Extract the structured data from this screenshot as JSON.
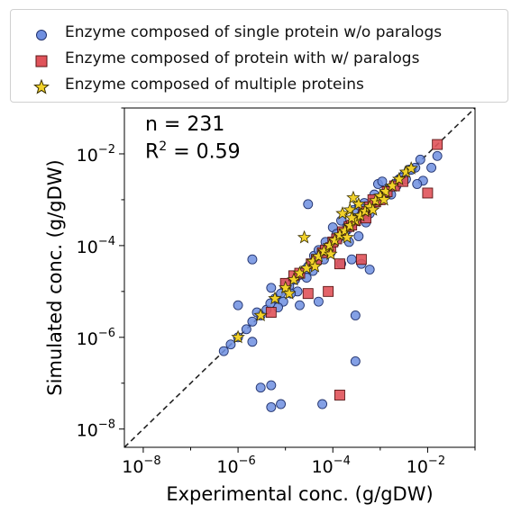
{
  "chart_data": {
    "type": "scatter",
    "xlabel": "Experimental conc. (g/gDW)",
    "ylabel": "Simulated conc. (g/gDW)",
    "xscale": "log",
    "yscale": "log",
    "xlim": [
      4e-09,
      0.1
    ],
    "ylim": [
      4e-09,
      0.1
    ],
    "xticks": [
      {
        "value": 1e-08,
        "base": "10",
        "exp": "−8"
      },
      {
        "value": 1e-06,
        "base": "10",
        "exp": "−6"
      },
      {
        "value": 0.0001,
        "base": "10",
        "exp": "−4"
      },
      {
        "value": 0.01,
        "base": "10",
        "exp": "−2"
      }
    ],
    "yticks": [
      {
        "value": 1e-08,
        "base": "10",
        "exp": "−8"
      },
      {
        "value": 1e-06,
        "base": "10",
        "exp": "−6"
      },
      {
        "value": 0.0001,
        "base": "10",
        "exp": "−4"
      },
      {
        "value": 0.01,
        "base": "10",
        "exp": "−2"
      }
    ],
    "grid": false,
    "legend_position": "top-outside",
    "reference_line": "y = x (dashed)",
    "annotations": {
      "n": "n = 231",
      "r2_prefix": "R",
      "r2_sup": "2",
      "r2_value": " = 0.59"
    },
    "series": [
      {
        "name": "Enzyme composed of single protein w/o paralogs",
        "marker": "circle",
        "color": "#6f8fe0",
        "points": [
          [
            5e-07,
            5e-07
          ],
          [
            7e-07,
            7e-07
          ],
          [
            1e-06,
            1e-06
          ],
          [
            1.5e-06,
            1.5e-06
          ],
          [
            2e-06,
            2.2e-06
          ],
          [
            3e-06,
            3e-06
          ],
          [
            4e-06,
            4e-06
          ],
          [
            6e-06,
            7e-06
          ],
          [
            8e-06,
            9e-06
          ],
          [
            1.2e-05,
            1.3e-05
          ],
          [
            1.6e-05,
            1.8e-05
          ],
          [
            2e-05,
            2.3e-05
          ],
          [
            2.6e-05,
            3e-05
          ],
          [
            3.5e-05,
            4e-05
          ],
          [
            4.5e-05,
            5e-05
          ],
          [
            6e-05,
            6.5e-05
          ],
          [
            8e-05,
            8.5e-05
          ],
          [
            0.0001,
            0.00011
          ],
          [
            0.00013,
            0.00014
          ],
          [
            0.00016,
            0.00018
          ],
          [
            0.0002,
            0.00022
          ],
          [
            0.00025,
            0.00028
          ],
          [
            0.00032,
            0.00035
          ],
          [
            0.0004,
            0.00045
          ],
          [
            0.0005,
            0.00055
          ],
          [
            0.00065,
            0.0007
          ],
          [
            0.0008,
            0.0009
          ],
          [
            0.001,
            0.0011
          ],
          [
            0.0013,
            0.0014
          ],
          [
            0.0016,
            0.0018
          ],
          [
            0.002,
            0.0022
          ],
          [
            0.0025,
            0.0028
          ],
          [
            0.0032,
            0.0035
          ],
          [
            0.004,
            0.0045
          ],
          [
            0.0055,
            0.005
          ],
          [
            0.007,
            0.0075
          ],
          [
            0.012,
            0.005
          ],
          [
            0.016,
            0.009
          ],
          [
            0.008,
            0.0026
          ],
          [
            0.006,
            0.0022
          ],
          [
            2e-06,
            5e-05
          ],
          [
            1e-06,
            5e-06
          ],
          [
            2.5e-06,
            3.5e-06
          ],
          [
            3e-05,
            0.0008
          ],
          [
            2e-05,
            5e-06
          ],
          [
            5e-05,
            6e-06
          ],
          [
            0.00015,
            4e-05
          ],
          [
            0.00025,
            5e-05
          ],
          [
            0.0004,
            4e-05
          ],
          [
            0.0006,
            3e-05
          ],
          [
            0.0003,
            3e-06
          ],
          [
            0.0001,
            0.00025
          ],
          [
            0.00015,
            0.00035
          ],
          [
            0.0002,
            0.00026
          ],
          [
            7e-05,
            0.00012
          ],
          [
            4e-05,
            6e-05
          ],
          [
            3e-05,
            3.5e-05
          ],
          [
            1e-05,
            1.5e-05
          ],
          [
            5e-06,
            1.2e-05
          ],
          [
            2e-06,
            8e-07
          ],
          [
            3e-06,
            8e-08
          ],
          [
            5e-06,
            9e-08
          ],
          [
            5e-06,
            3e-08
          ],
          [
            8e-06,
            3.5e-08
          ],
          [
            6e-05,
            3.5e-08
          ],
          [
            0.0003,
            3e-07
          ],
          [
            0.0009,
            0.0022
          ],
          [
            0.0011,
            0.0025
          ],
          [
            0.0014,
            0.0016
          ],
          [
            0.0028,
            0.003
          ],
          [
            0.0045,
            0.0045
          ],
          [
            0.0006,
            0.0005
          ],
          [
            0.0005,
            0.00032
          ],
          [
            0.00035,
            0.00016
          ],
          [
            0.00022,
            0.00012
          ],
          [
            0.00018,
            0.0002
          ],
          [
            0.00012,
            0.00018
          ],
          [
            9e-05,
            7e-05
          ],
          [
            6.5e-05,
            5e-05
          ],
          [
            5e-05,
            8e-05
          ],
          [
            3.8e-05,
            2.8e-05
          ],
          [
            2.8e-05,
            2e-05
          ],
          [
            1.8e-05,
            1e-05
          ],
          [
            1.3e-05,
            9e-06
          ],
          [
            9e-06,
            6e-06
          ],
          [
            7e-06,
            4.5e-06
          ],
          [
            4.8e-06,
            5.5e-06
          ],
          [
            0.00028,
            0.0006
          ],
          [
            0.00036,
            0.00075
          ],
          [
            0.00046,
            0.00085
          ],
          [
            0.00075,
            0.0013
          ],
          [
            0.0017,
            0.0013
          ],
          [
            0.0022,
            0.002
          ],
          [
            0.0035,
            0.0028
          ]
        ]
      },
      {
        "name": "Enzyme composed of protein with w/ paralogs",
        "marker": "square",
        "color": "#e0535a",
        "points": [
          [
            5e-06,
            3.5e-06
          ],
          [
            1e-05,
            1.5e-05
          ],
          [
            1.5e-05,
            2.2e-05
          ],
          [
            2e-05,
            2.5e-05
          ],
          [
            3e-05,
            9e-06
          ],
          [
            3.5e-05,
            4e-05
          ],
          [
            4.5e-05,
            5e-05
          ],
          [
            6e-05,
            7e-05
          ],
          [
            8e-05,
            1e-05
          ],
          [
            9e-05,
            9e-05
          ],
          [
            0.00012,
            0.00014
          ],
          [
            0.00014,
            4e-05
          ],
          [
            0.00016,
            0.0002
          ],
          [
            0.00022,
            0.00026
          ],
          [
            0.0003,
            0.00035
          ],
          [
            0.0004,
            5e-05
          ],
          [
            0.00045,
            0.00055
          ],
          [
            0.0006,
            0.0007
          ],
          [
            0.0008,
            0.0009
          ],
          [
            0.001,
            0.001
          ],
          [
            0.0014,
            0.0015
          ],
          [
            0.002,
            0.002
          ],
          [
            0.003,
            0.0025
          ],
          [
            0.01,
            0.0014
          ],
          [
            0.016,
            0.016
          ],
          [
            0.00014,
            5.5e-08
          ],
          [
            0.0007,
            0.001
          ],
          [
            0.0005,
            0.0004
          ],
          [
            0.00025,
            0.00028
          ],
          [
            0.0001,
            0.00012
          ],
          [
            7e-05,
            8e-05
          ]
        ]
      },
      {
        "name": "Enzyme composed of multiple proteins",
        "marker": "star",
        "color": "#f2d22a",
        "points": [
          [
            1e-06,
            1e-06
          ],
          [
            3e-06,
            3e-06
          ],
          [
            6e-06,
            7e-06
          ],
          [
            1e-05,
            1.2e-05
          ],
          [
            1.5e-05,
            1.8e-05
          ],
          [
            2e-05,
            2.5e-05
          ],
          [
            2.8e-05,
            3.2e-05
          ],
          [
            3.8e-05,
            4.5e-05
          ],
          [
            5e-05,
            5.8e-05
          ],
          [
            6.5e-05,
            7.5e-05
          ],
          [
            8.5e-05,
            0.0001
          ],
          [
            0.00011,
            0.00013
          ],
          [
            0.00014,
            0.00017
          ],
          [
            0.00018,
            0.00021
          ],
          [
            0.00023,
            0.00027
          ],
          [
            0.0003,
            0.00035
          ],
          [
            0.00038,
            0.00045
          ],
          [
            0.00048,
            0.00056
          ],
          [
            0.0006,
            0.0007
          ],
          [
            0.0008,
            0.00095
          ],
          [
            0.001,
            0.0012
          ],
          [
            0.0013,
            0.0015
          ],
          [
            0.0018,
            0.002
          ],
          [
            0.0025,
            0.0028
          ],
          [
            0.0035,
            0.004
          ],
          [
            0.0045,
            0.0048
          ],
          [
            0.00027,
            0.0011
          ],
          [
            0.00023,
            0.0006
          ],
          [
            2.5e-05,
            0.00015
          ],
          [
            0.00035,
            0.0008
          ],
          [
            0.00016,
            0.0005
          ],
          [
            0.0002,
            0.00015
          ],
          [
            9e-05,
            6.5e-05
          ],
          [
            4.2e-05,
            3.5e-05
          ],
          [
            1.2e-05,
            9e-06
          ],
          [
            0.00025,
            0.0004
          ],
          [
            0.0012,
            0.001
          ],
          [
            0.0007,
            0.0006
          ]
        ]
      }
    ]
  }
}
